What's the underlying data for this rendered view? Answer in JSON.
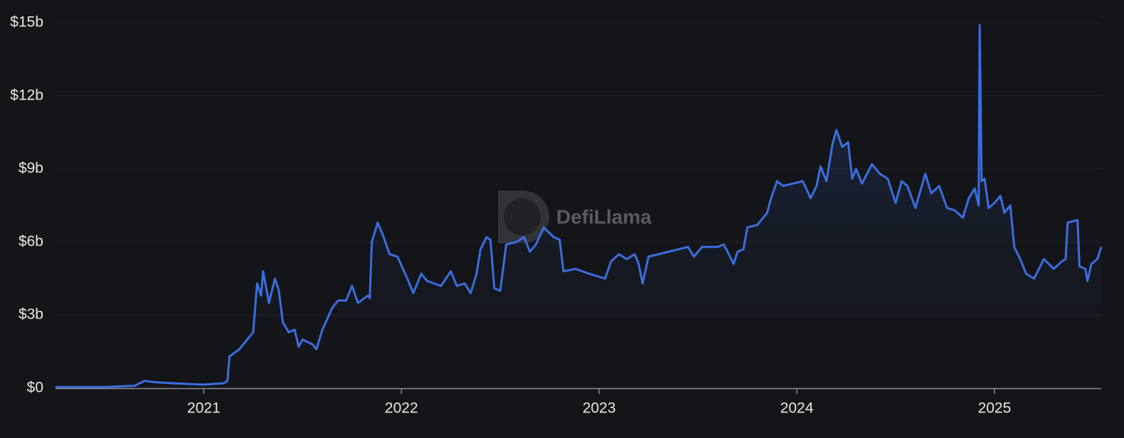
{
  "chart_data": {
    "type": "area",
    "watermark": "DefiLlama",
    "color": "#3a6ee0",
    "grid": true,
    "xlim": [
      2020.25,
      2025.54
    ],
    "xticks": [
      2021,
      2022,
      2023,
      2024,
      2025
    ],
    "ylim": [
      0,
      15
    ],
    "yticks": [
      {
        "value": 0,
        "label": "$0"
      },
      {
        "value": 3,
        "label": "$3b"
      },
      {
        "value": 6,
        "label": "$6b"
      },
      {
        "value": 9,
        "label": "$9b"
      },
      {
        "value": 12,
        "label": "$12b"
      },
      {
        "value": 15,
        "label": "$15b"
      }
    ],
    "x": [
      2020.25,
      2020.5,
      2020.65,
      2020.7,
      2020.75,
      2020.85,
      2021.0,
      2021.1,
      2021.12,
      2021.13,
      2021.18,
      2021.22,
      2021.25,
      2021.27,
      2021.29,
      2021.3,
      2021.33,
      2021.36,
      2021.38,
      2021.4,
      2021.43,
      2021.46,
      2021.48,
      2021.5,
      2021.55,
      2021.57,
      2021.6,
      2021.65,
      2021.68,
      2021.72,
      2021.75,
      2021.78,
      2021.83,
      2021.84,
      2021.85,
      2021.88,
      2021.91,
      2021.94,
      2021.98,
      2022.03,
      2022.06,
      2022.1,
      2022.13,
      2022.2,
      2022.25,
      2022.28,
      2022.32,
      2022.35,
      2022.38,
      2022.4,
      2022.43,
      2022.45,
      2022.47,
      2022.5,
      2022.53,
      2022.58,
      2022.62,
      2022.65,
      2022.68,
      2022.72,
      2022.77,
      2022.8,
      2022.82,
      2022.88,
      2022.95,
      2023.03,
      2023.06,
      2023.1,
      2023.14,
      2023.18,
      2023.2,
      2023.22,
      2023.25,
      2023.3,
      2023.35,
      2023.4,
      2023.45,
      2023.48,
      2023.52,
      2023.6,
      2023.63,
      2023.65,
      2023.68,
      2023.7,
      2023.73,
      2023.75,
      2023.8,
      2023.85,
      2023.87,
      2023.9,
      2023.93,
      2023.98,
      2024.03,
      2024.07,
      2024.1,
      2024.12,
      2024.15,
      2024.18,
      2024.2,
      2024.23,
      2024.26,
      2024.28,
      2024.3,
      2024.33,
      2024.38,
      2024.42,
      2024.46,
      2024.5,
      2024.53,
      2024.56,
      2024.6,
      2024.65,
      2024.68,
      2024.72,
      2024.76,
      2024.8,
      2024.84,
      2024.87,
      2024.9,
      2024.92,
      2024.925,
      2024.935,
      2024.95,
      2024.97,
      2025.0,
      2025.03,
      2025.05,
      2025.08,
      2025.1,
      2025.13,
      2025.16,
      2025.2,
      2025.25,
      2025.3,
      2025.34,
      2025.36,
      2025.37,
      2025.42,
      2025.43,
      2025.46,
      2025.47,
      2025.49,
      2025.52,
      2025.54
    ],
    "values": [
      0.05,
      0.05,
      0.1,
      0.3,
      0.25,
      0.2,
      0.15,
      0.2,
      0.3,
      1.3,
      1.6,
      2.0,
      2.3,
      4.3,
      3.8,
      4.8,
      3.5,
      4.5,
      4.0,
      2.7,
      2.3,
      2.4,
      1.7,
      2.0,
      1.8,
      1.6,
      2.4,
      3.3,
      3.6,
      3.6,
      4.2,
      3.5,
      3.8,
      3.7,
      6.0,
      6.8,
      6.2,
      5.5,
      5.4,
      4.5,
      3.9,
      4.7,
      4.4,
      4.2,
      4.8,
      4.2,
      4.3,
      3.9,
      4.7,
      5.7,
      6.2,
      6.1,
      4.1,
      4.0,
      5.9,
      6.0,
      6.2,
      5.6,
      5.9,
      6.6,
      6.2,
      6.1,
      4.8,
      4.9,
      4.7,
      4.5,
      5.2,
      5.5,
      5.3,
      5.5,
      5.1,
      4.3,
      5.4,
      5.5,
      5.6,
      5.7,
      5.8,
      5.4,
      5.8,
      5.8,
      5.9,
      5.6,
      5.1,
      5.6,
      5.7,
      6.6,
      6.7,
      7.2,
      7.8,
      8.5,
      8.3,
      8.4,
      8.5,
      7.8,
      8.3,
      9.1,
      8.5,
      10.0,
      10.6,
      9.9,
      10.1,
      8.6,
      9.0,
      8.4,
      9.2,
      8.8,
      8.6,
      7.6,
      8.5,
      8.3,
      7.4,
      8.8,
      8.0,
      8.3,
      7.4,
      7.3,
      7.0,
      7.8,
      8.2,
      7.5,
      14.9,
      8.5,
      8.6,
      7.4,
      7.6,
      7.9,
      7.2,
      7.5,
      5.8,
      5.3,
      4.7,
      4.5,
      5.3,
      4.9,
      5.2,
      5.3,
      6.8,
      6.9,
      5.0,
      4.9,
      4.4,
      5.1,
      5.3,
      5.8
    ]
  }
}
